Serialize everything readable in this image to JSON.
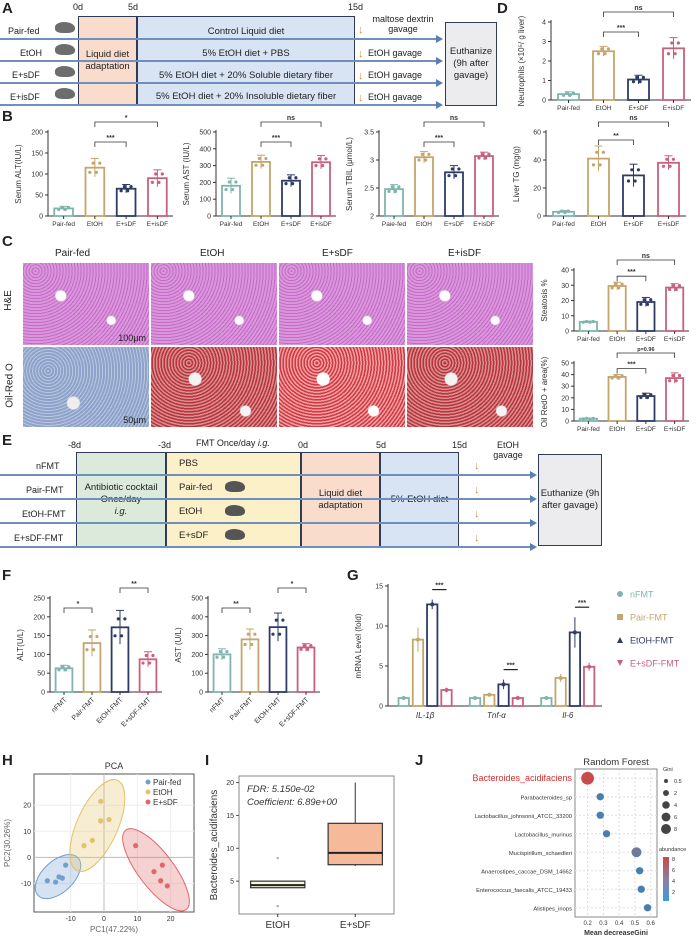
{
  "panels": {
    "a": "A",
    "b": "B",
    "c": "C",
    "d": "D",
    "e": "E",
    "f": "F",
    "g": "G",
    "h": "H",
    "i": "I",
    "j": "J"
  },
  "diagram_a": {
    "days": [
      "0d",
      "5d",
      "15d"
    ],
    "groups": [
      "Pair-fed",
      "EtOH",
      "E+sDF",
      "E+isDF"
    ],
    "adaptation": "Liquid diet adaptation",
    "diets": [
      "Control Liquid diet",
      "5% EtOH diet + PBS",
      "5% EtOH diet + 20% Soluble dietary fiber",
      "5% EtOH diet + 20% Insoluble dietary fiber"
    ],
    "gavage": [
      "maltose dextrin gavage",
      "EtOH gavage",
      "EtOH gavage",
      "EtOH gavage"
    ],
    "end": "Euthanize (9h after gavage)"
  },
  "histology": {
    "columns": [
      "Pair-fed",
      "EtOH",
      "E+sDF",
      "E+isDF"
    ],
    "rows": [
      "H&E",
      "Oil-Red O"
    ],
    "scale_bars": [
      "100μm",
      "50μm"
    ]
  },
  "diagram_e": {
    "days": [
      "-8d",
      "-3d",
      "0d",
      "5d",
      "15d"
    ],
    "fmt_label": "FMT Once/day",
    "fmt_suffix": "i.g.",
    "groups": [
      "nFMT",
      "Pair-FMT",
      "EtOH-FMT",
      "E+sDF-FMT"
    ],
    "antibiotic": "Antibiotic cocktail Once/day",
    "antibiotic_suffix": "i.g.",
    "donors": [
      "PBS",
      "Pair-fed",
      "EtOH",
      "E+sDF"
    ],
    "adaptation": "Liquid diet adaptation",
    "diet": "5% EtOH diet",
    "gavage": "EtOH gavage",
    "end": "Euthanize (9h after gavage)"
  },
  "colors": {
    "pair": "#7fb5ad",
    "etoh": "#c5a56c",
    "esdf": "#2e3b66",
    "eisdf": "#c8607e"
  },
  "chart_data": [
    {
      "id": "D",
      "type": "bar",
      "ylabel": "Neutrophils (×10⁵/ g liver)",
      "categories": [
        "Pair-fed",
        "EtOH",
        "E+sDF",
        "E+isDF"
      ],
      "values": [
        0.3,
        2.5,
        1.05,
        2.65
      ],
      "errors": [
        0.12,
        0.25,
        0.22,
        0.55
      ],
      "ylim": [
        0,
        4
      ],
      "yticks": [
        0,
        1,
        2,
        3,
        4
      ],
      "sig": [
        {
          "from": 1,
          "to": 2,
          "label": "***"
        },
        {
          "from": 1,
          "to": 3,
          "label": "ns"
        }
      ]
    },
    {
      "id": "B1",
      "type": "bar",
      "ylabel": "Serum ALT(IU/L)",
      "categories": [
        "Pair-fed",
        "EtOH",
        "E+sDF",
        "E+isDF"
      ],
      "values": [
        18,
        115,
        65,
        90
      ],
      "errors": [
        5,
        22,
        10,
        20
      ],
      "ylim": [
        0,
        200
      ],
      "yticks": [
        0,
        50,
        100,
        150,
        200
      ],
      "sig": [
        {
          "from": 1,
          "to": 2,
          "label": "***"
        },
        {
          "from": 1,
          "to": 3,
          "label": "*"
        }
      ]
    },
    {
      "id": "B2",
      "type": "bar",
      "ylabel": "Serum AST (IU/L)",
      "categories": [
        "Pair-fed",
        "EtOH",
        "E+sDF",
        "E+isDF"
      ],
      "values": [
        180,
        322,
        210,
        320
      ],
      "errors": [
        45,
        40,
        35,
        40
      ],
      "ylim": [
        0,
        500
      ],
      "yticks": [
        0,
        100,
        200,
        300,
        400,
        500
      ],
      "sig": [
        {
          "from": 1,
          "to": 2,
          "label": "***"
        },
        {
          "from": 1,
          "to": 3,
          "label": "ns"
        }
      ]
    },
    {
      "id": "B3",
      "type": "bar",
      "ylabel": "Serum TBIL (μmol/L)",
      "categories": [
        "Paie-fed",
        "EtOH",
        "E+sDF",
        "E+isDF"
      ],
      "values": [
        2.48,
        3.05,
        2.78,
        3.07
      ],
      "errors": [
        0.08,
        0.1,
        0.12,
        0.07
      ],
      "ylim": [
        2.0,
        3.5
      ],
      "yticks": [
        2.0,
        2.5,
        3.0,
        3.5
      ],
      "sig": [
        {
          "from": 1,
          "to": 2,
          "label": "***"
        },
        {
          "from": 1,
          "to": 3,
          "label": "ns"
        }
      ]
    },
    {
      "id": "B4",
      "type": "bar",
      "ylabel": "Liver TG (mg/g)",
      "categories": [
        "Pair-fed",
        "EtOH",
        "E+sDF",
        "E+isDF"
      ],
      "values": [
        3,
        41,
        29,
        38
      ],
      "errors": [
        1,
        9,
        8,
        5
      ],
      "ylim": [
        0,
        60
      ],
      "yticks": [
        0,
        20,
        40,
        60
      ],
      "sig": [
        {
          "from": 1,
          "to": 2,
          "label": "**"
        },
        {
          "from": 1,
          "to": 3,
          "label": "ns"
        }
      ]
    },
    {
      "id": "C1",
      "type": "bar",
      "ylabel": "Steatosis %",
      "categories": [
        "Pair-fed",
        "EtOH",
        "E+sDF",
        "E+isDF"
      ],
      "values": [
        6,
        29.5,
        19,
        28.5
      ],
      "errors": [
        0.5,
        2.5,
        3,
        2.5
      ],
      "ylim": [
        0,
        40
      ],
      "yticks": [
        0,
        10,
        20,
        30,
        40
      ],
      "sig": [
        {
          "from": 1,
          "to": 2,
          "label": "***"
        },
        {
          "from": 1,
          "to": 3,
          "label": "ns"
        }
      ]
    },
    {
      "id": "C2",
      "type": "bar",
      "ylabel": "Oil RedO + area(%)",
      "categories": [
        "Pair-fed",
        "EtOH",
        "E+sDF",
        "E+isDF"
      ],
      "values": [
        2,
        38,
        21.5,
        37
      ],
      "errors": [
        0.5,
        2,
        2.5,
        4.5
      ],
      "ylim": [
        0,
        50
      ],
      "yticks": [
        0,
        10,
        20,
        30,
        40,
        50
      ],
      "sig": [
        {
          "from": 1,
          "to": 2,
          "label": "***"
        },
        {
          "from": 1,
          "to": 3,
          "label": "p=0.96"
        }
      ]
    },
    {
      "id": "F1",
      "type": "bar",
      "rotate": true,
      "ylabel": "ALT(U/L)",
      "categories": [
        "nFMT",
        "Pair-FMT",
        "EtOH-FMT",
        "E+sDF-FMT"
      ],
      "values": [
        63,
        130,
        172,
        87
      ],
      "errors": [
        8,
        35,
        45,
        20
      ],
      "ylim": [
        0,
        250
      ],
      "yticks": [
        0,
        50,
        100,
        150,
        200,
        250
      ],
      "sig": [
        {
          "from": 0,
          "to": 1,
          "label": "*"
        },
        {
          "from": 2,
          "to": 3,
          "label": "**"
        }
      ]
    },
    {
      "id": "F2",
      "type": "bar",
      "rotate": true,
      "ylabel": "AST (U/L)",
      "categories": [
        "nFMT",
        "Pair-FMT",
        "EtOH-FMT",
        "E+sDF-FMT"
      ],
      "values": [
        200,
        280,
        345,
        237
      ],
      "errors": [
        30,
        55,
        75,
        20
      ],
      "ylim": [
        0,
        500
      ],
      "yticks": [
        0,
        100,
        200,
        300,
        400,
        500
      ],
      "sig": [
        {
          "from": 0,
          "to": 1,
          "label": "**"
        },
        {
          "from": 2,
          "to": 3,
          "label": "*"
        }
      ]
    },
    {
      "id": "G",
      "type": "bar",
      "grouped": true,
      "ylabel": "mRNA Level (fold)",
      "categories": [
        "IL-1β",
        "Tnf-α",
        "Il-6"
      ],
      "ylim": [
        0,
        15
      ],
      "yticks": [
        0,
        5,
        10,
        15
      ],
      "series": [
        {
          "name": "nFMT",
          "values": [
            1,
            1,
            1
          ],
          "errors": [
            0.1,
            0.2,
            0.1
          ]
        },
        {
          "name": "Pair-FMT",
          "values": [
            8.3,
            1.4,
            3.5
          ],
          "errors": [
            1.5,
            0.2,
            0.5
          ]
        },
        {
          "name": "EtOH-FMT",
          "values": [
            12.7,
            2.7,
            9.2
          ],
          "errors": [
            0.6,
            0.6,
            1.9
          ]
        },
        {
          "name": "E+sDF-FMT",
          "values": [
            2.0,
            1.0,
            4.9
          ],
          "errors": [
            0.3,
            0.2,
            0.5
          ]
        }
      ],
      "sig": [
        "***",
        "***",
        "***"
      ]
    },
    {
      "id": "H",
      "type": "scatter",
      "title": "PCA",
      "xlabel": "PC1(47.22%)",
      "ylabel": "PC2(30.26%)",
      "xlim": [
        -21,
        27
      ],
      "ylim": [
        -21,
        32
      ],
      "xticks": [
        -10,
        0,
        10,
        20
      ],
      "yticks": [
        -10,
        0,
        10,
        20
      ],
      "legend": "top-right",
      "groups": [
        {
          "name": "Pair-fed",
          "color": "#6fa0cf",
          "points": [
            [
              -17,
              -9
            ],
            [
              -14.5,
              -9.5
            ],
            [
              -13.5,
              -7.5
            ],
            [
              -12.5,
              -8
            ],
            [
              -11.5,
              -3
            ]
          ]
        },
        {
          "name": "EtOH",
          "color": "#e2c36c",
          "points": [
            [
              -6,
              4.5
            ],
            [
              -3.5,
              6.5
            ],
            [
              -1,
              14
            ],
            [
              1.5,
              14.5
            ],
            [
              -1,
              21.5
            ]
          ]
        },
        {
          "name": "E+sDF",
          "color": "#e2676b",
          "points": [
            [
              9.5,
              4.5
            ],
            [
              15,
              -5.5
            ],
            [
              17.5,
              -3
            ],
            [
              17,
              -9
            ],
            [
              19,
              -11
            ]
          ]
        }
      ]
    },
    {
      "id": "I",
      "type": "box",
      "ylabel": "Bacteroides_acidifaciens",
      "annotations": [
        "FDR: 5.150e-02",
        "Coefficient: 6.89e+00"
      ],
      "ylim": [
        0,
        21
      ],
      "yticks": [
        5,
        10,
        15,
        20
      ],
      "groups": [
        {
          "name": "EtOH",
          "min": 4,
          "q1": 4.0,
          "median": 4.4,
          "q3": 5.0,
          "max": 5.0,
          "outliers": [
            1.2,
            8.5
          ],
          "color": "#f6f6df"
        },
        {
          "name": "E+sDF",
          "min": 7.3,
          "q1": 7.5,
          "median": 9.3,
          "q3": 13.8,
          "max": 20,
          "outliers": [],
          "color": "#f6b99a"
        }
      ]
    },
    {
      "id": "J",
      "type": "scatter",
      "title": "Random Forest",
      "xlabel": "Mean decreaseGini",
      "xlim": [
        0.12,
        0.64
      ],
      "xticks": [
        0.2,
        0.3,
        0.4,
        0.5,
        0.6
      ],
      "rows": [
        {
          "name": "Bacteroides_acidifaciens",
          "x": 0.2,
          "gini": 8,
          "abundance": 8,
          "highlight": true
        },
        {
          "name": "Parabacteroides_sp",
          "x": 0.28,
          "gini": 1.5,
          "abundance": 3
        },
        {
          "name": "Lactobacillus_johnsonii_ATCC_33200",
          "x": 0.28,
          "gini": 1.5,
          "abundance": 3
        },
        {
          "name": "Lactobacillus_murinus",
          "x": 0.32,
          "gini": 1.5,
          "abundance": 2.5
        },
        {
          "name": "Mucispirillum_schaedleri",
          "x": 0.51,
          "gini": 4,
          "abundance": 3.5
        },
        {
          "name": "Anaerostipes_caccae_DSM_14662",
          "x": 0.53,
          "gini": 1.5,
          "abundance": 3
        },
        {
          "name": "Enterococcus_faecalis_ATCC_19433",
          "x": 0.54,
          "gini": 1.5,
          "abundance": 2.5
        },
        {
          "name": "Alistipes_inops",
          "x": 0.58,
          "gini": 1.5,
          "abundance": 2
        }
      ],
      "legend_gini": {
        "title": "Gini",
        "values": [
          0.5,
          2,
          4,
          6,
          8
        ]
      },
      "legend_abundance": {
        "title": "abundance",
        "values": [
          8,
          6,
          4,
          2
        ]
      }
    }
  ]
}
